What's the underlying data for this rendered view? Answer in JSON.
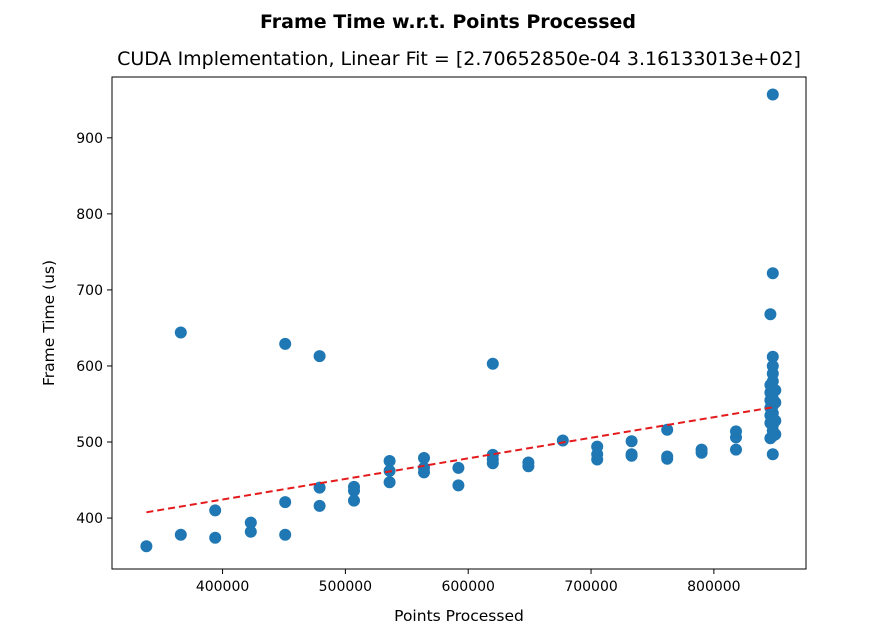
{
  "chart_data": {
    "type": "scatter",
    "suptitle": "Frame Time w.r.t. Points Processed",
    "title": "CUDA Implementation, Linear Fit = [2.70652850e-04 3.16133013e+02]",
    "xlabel": "Points Processed",
    "ylabel": "Frame Time (us)",
    "xlim": [
      310000,
      875000
    ],
    "ylim": [
      333,
      980
    ],
    "xticks": [
      400000,
      500000,
      600000,
      700000,
      800000
    ],
    "yticks": [
      400,
      500,
      600,
      700,
      800,
      900
    ],
    "grid": false,
    "legend": "none",
    "point_color": "#1f77b4",
    "fit_color": "#e41a1c",
    "series": [
      {
        "type": "scatter",
        "points": [
          [
            338000,
            363
          ],
          [
            366000,
            378
          ],
          [
            366000,
            644
          ],
          [
            394000,
            374
          ],
          [
            394000,
            410
          ],
          [
            423000,
            382
          ],
          [
            423000,
            394
          ],
          [
            451000,
            378
          ],
          [
            451000,
            421
          ],
          [
            451000,
            629
          ],
          [
            479000,
            416
          ],
          [
            479000,
            440
          ],
          [
            479000,
            613
          ],
          [
            507000,
            423
          ],
          [
            507000,
            436
          ],
          [
            507000,
            441
          ],
          [
            536000,
            447
          ],
          [
            536000,
            462
          ],
          [
            536000,
            475
          ],
          [
            564000,
            460
          ],
          [
            564000,
            466
          ],
          [
            564000,
            479
          ],
          [
            592000,
            443
          ],
          [
            592000,
            466
          ],
          [
            620000,
            472
          ],
          [
            620000,
            477
          ],
          [
            620000,
            483
          ],
          [
            620000,
            603
          ],
          [
            649000,
            468
          ],
          [
            649000,
            473
          ],
          [
            677000,
            502
          ],
          [
            705000,
            477
          ],
          [
            705000,
            484
          ],
          [
            705000,
            494
          ],
          [
            733000,
            482
          ],
          [
            733000,
            484
          ],
          [
            733000,
            501
          ],
          [
            762000,
            478
          ],
          [
            762000,
            481
          ],
          [
            762000,
            516
          ],
          [
            790000,
            486
          ],
          [
            790000,
            490
          ],
          [
            818000,
            490
          ],
          [
            818000,
            506
          ],
          [
            818000,
            514
          ],
          [
            846000,
            505
          ],
          [
            846000,
            525
          ],
          [
            846000,
            535
          ],
          [
            846000,
            545
          ],
          [
            846000,
            555
          ],
          [
            846000,
            565
          ],
          [
            846000,
            575
          ],
          [
            846000,
            668
          ],
          [
            848000,
            484
          ],
          [
            848000,
            508
          ],
          [
            848000,
            515
          ],
          [
            848000,
            522
          ],
          [
            848000,
            530
          ],
          [
            848000,
            538
          ],
          [
            848000,
            548
          ],
          [
            848000,
            557
          ],
          [
            848000,
            570
          ],
          [
            848000,
            580
          ],
          [
            848000,
            590
          ],
          [
            848000,
            600
          ],
          [
            848000,
            612
          ],
          [
            848000,
            722
          ],
          [
            848000,
            957
          ],
          [
            850000,
            510
          ],
          [
            850000,
            528
          ],
          [
            850000,
            552
          ],
          [
            850000,
            568
          ]
        ]
      },
      {
        "type": "line",
        "style": "dashed",
        "points": [
          [
            338000,
            407.6
          ],
          [
            848000,
            545.7
          ]
        ]
      }
    ]
  }
}
